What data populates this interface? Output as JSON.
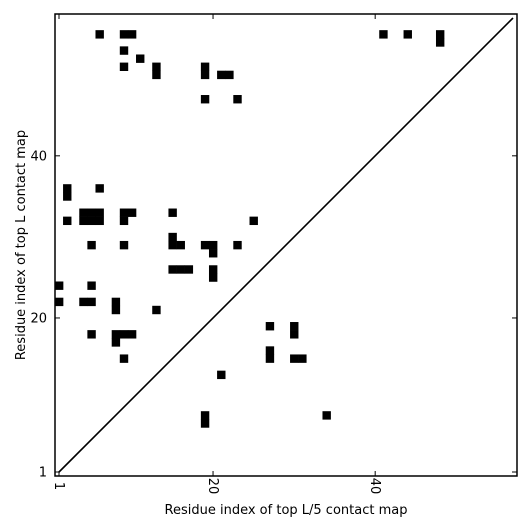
{
  "chart_data": {
    "type": "heatmap",
    "xlabel": "Residue index of top L/5 contact map",
    "ylabel": "Residue index of top L contact map",
    "xlim": [
      1,
      57
    ],
    "ylim": [
      1,
      57
    ],
    "x_ticks": [
      {
        "value": 1,
        "label": "1"
      },
      {
        "value": 20,
        "label": "20"
      },
      {
        "value": 40,
        "label": "40"
      }
    ],
    "y_ticks": [
      {
        "value": 1,
        "label": "1"
      },
      {
        "value": 20,
        "label": "20"
      },
      {
        "value": 40,
        "label": "40"
      }
    ],
    "diagonal": true,
    "cell_color": "#000000",
    "cells": [
      [
        6,
        55
      ],
      [
        9,
        55
      ],
      [
        10,
        55
      ],
      [
        41,
        55
      ],
      [
        44,
        55
      ],
      [
        48,
        55
      ],
      [
        48,
        54
      ],
      [
        9,
        53
      ],
      [
        11,
        52
      ],
      [
        9,
        51
      ],
      [
        13,
        51
      ],
      [
        19,
        51
      ],
      [
        13,
        50
      ],
      [
        19,
        50
      ],
      [
        21,
        50
      ],
      [
        22,
        50
      ],
      [
        19,
        47
      ],
      [
        23,
        47
      ],
      [
        2,
        36
      ],
      [
        2,
        35
      ],
      [
        6,
        36
      ],
      [
        4,
        33
      ],
      [
        5,
        33
      ],
      [
        6,
        33
      ],
      [
        9,
        33
      ],
      [
        10,
        33
      ],
      [
        15,
        33
      ],
      [
        2,
        32
      ],
      [
        4,
        32
      ],
      [
        5,
        32
      ],
      [
        6,
        32
      ],
      [
        9,
        32
      ],
      [
        25,
        32
      ],
      [
        15,
        30
      ],
      [
        5,
        29
      ],
      [
        9,
        29
      ],
      [
        15,
        29
      ],
      [
        16,
        29
      ],
      [
        19,
        29
      ],
      [
        20,
        29
      ],
      [
        23,
        29
      ],
      [
        20,
        28
      ],
      [
        15,
        26
      ],
      [
        16,
        26
      ],
      [
        17,
        26
      ],
      [
        20,
        26
      ],
      [
        20,
        25
      ],
      [
        1,
        24
      ],
      [
        5,
        24
      ],
      [
        1,
        22
      ],
      [
        4,
        22
      ],
      [
        5,
        22
      ],
      [
        8,
        22
      ],
      [
        8,
        21
      ],
      [
        13,
        21
      ],
      [
        27,
        19
      ],
      [
        30,
        19
      ],
      [
        30,
        18
      ],
      [
        5,
        18
      ],
      [
        8,
        18
      ],
      [
        9,
        18
      ],
      [
        10,
        18
      ],
      [
        8,
        17
      ],
      [
        27,
        16
      ],
      [
        27,
        15
      ],
      [
        30,
        15
      ],
      [
        31,
        15
      ],
      [
        9,
        15
      ],
      [
        21,
        13
      ],
      [
        19,
        8
      ],
      [
        34,
        8
      ],
      [
        19,
        7
      ]
    ]
  }
}
